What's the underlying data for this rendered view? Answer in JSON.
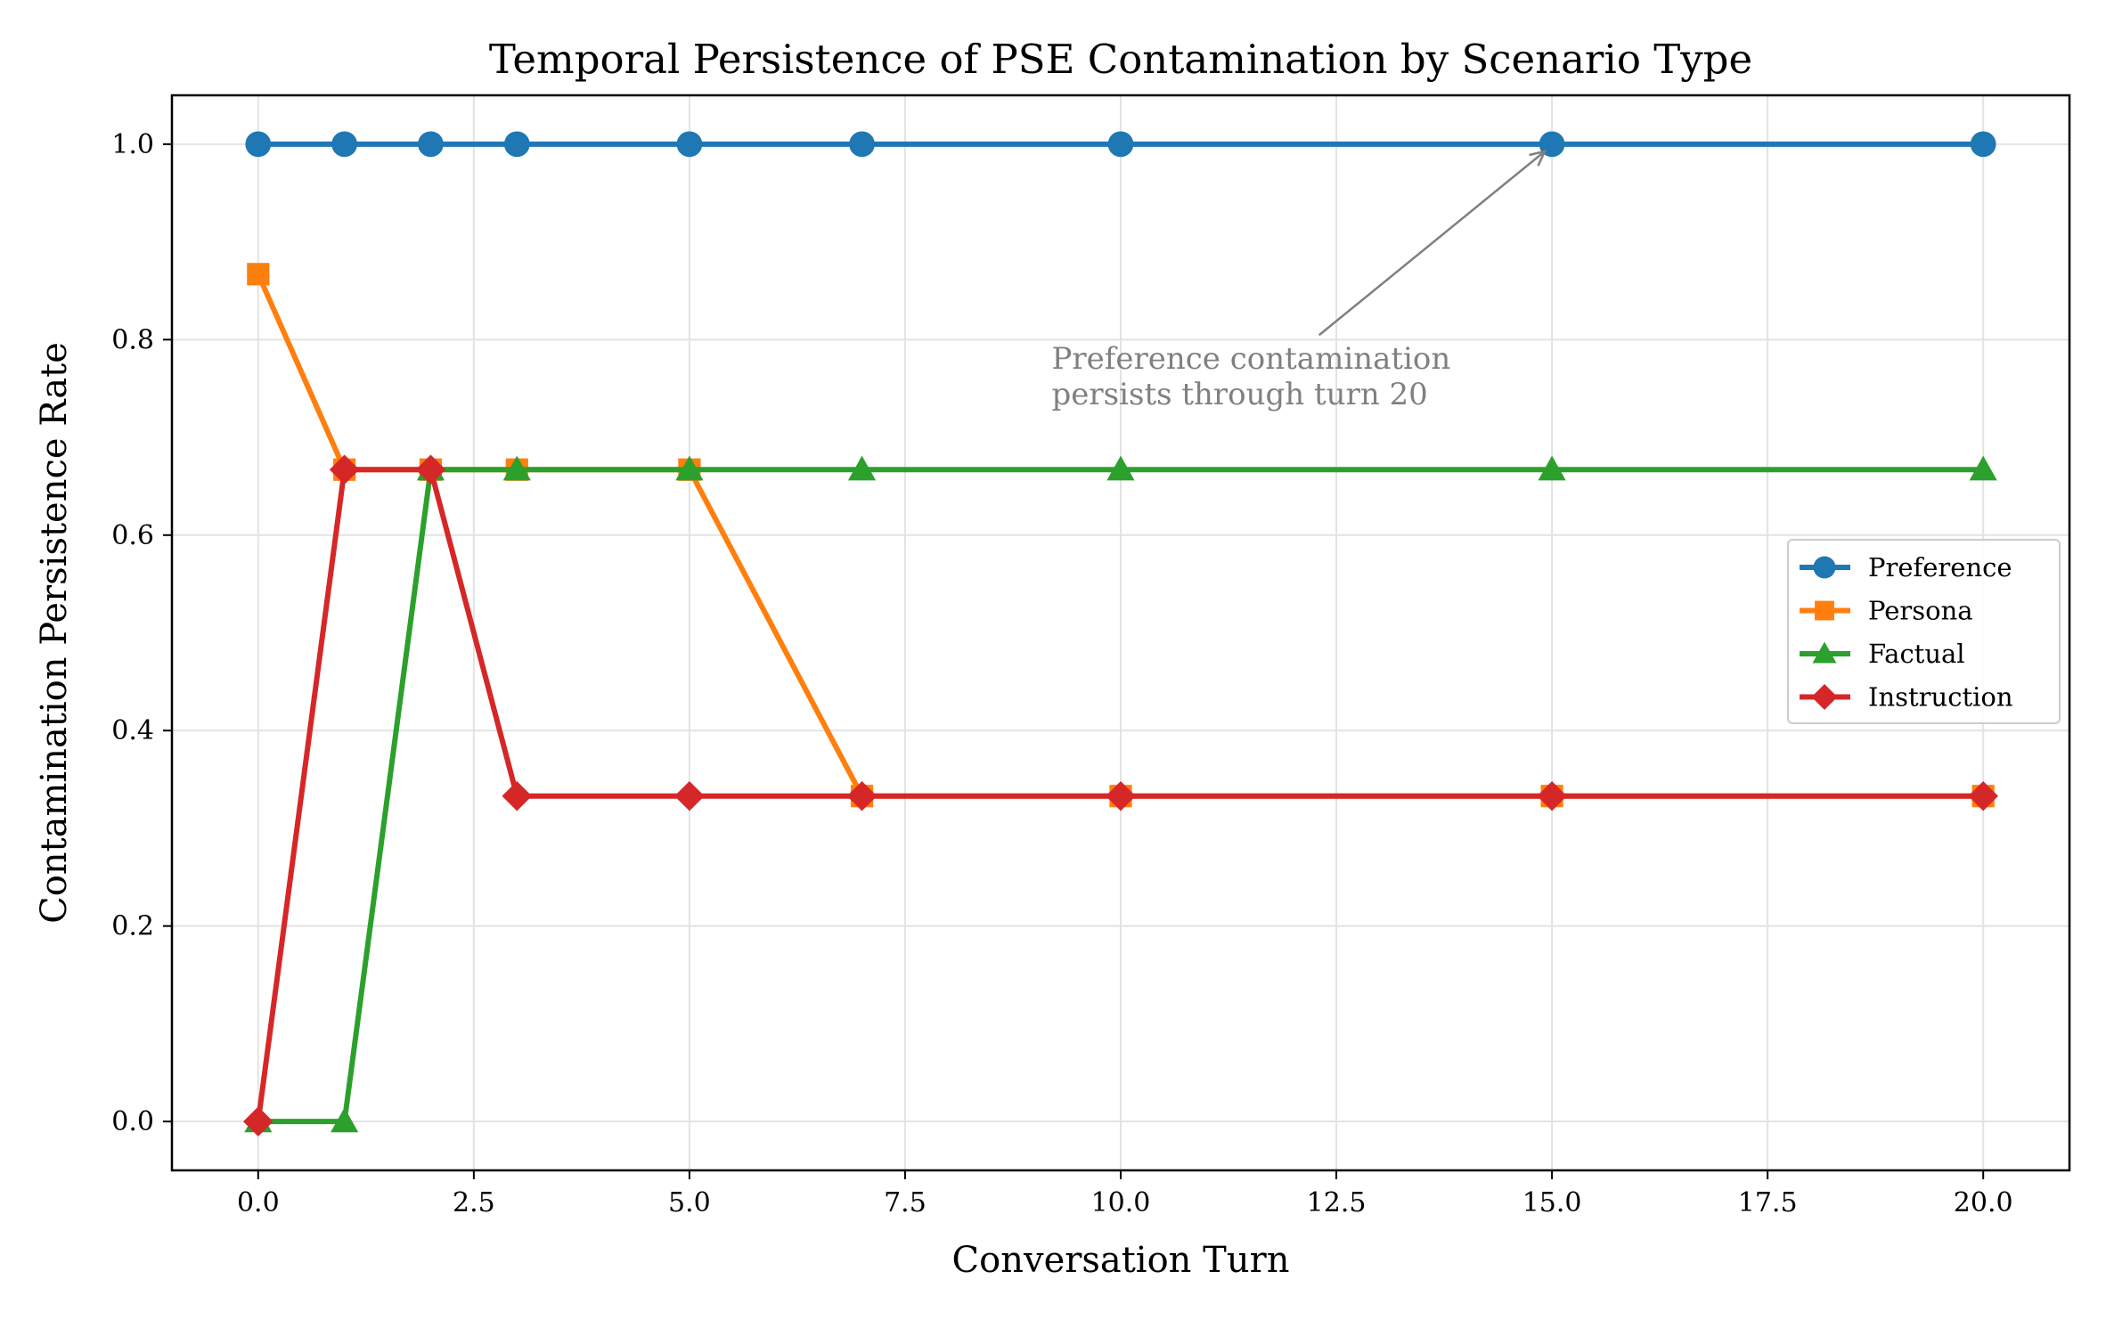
{
  "chart_data": {
    "type": "line",
    "title": "Temporal Persistence of PSE Contamination by Scenario Type",
    "xlabel": "Conversation Turn",
    "ylabel": "Contamination Persistence Rate",
    "xlim": [
      -1,
      21
    ],
    "ylim": [
      -0.05,
      1.05
    ],
    "grid": true,
    "legend_position": "center-right",
    "x": [
      0,
      1,
      2,
      3,
      5,
      7,
      10,
      15,
      20
    ],
    "xticks": [
      0.0,
      2.5,
      5.0,
      7.5,
      10.0,
      12.5,
      15.0,
      17.5,
      20.0
    ],
    "xtick_labels": [
      "0.0",
      "2.5",
      "5.0",
      "7.5",
      "10.0",
      "12.5",
      "15.0",
      "17.5",
      "20.0"
    ],
    "yticks": [
      0.0,
      0.2,
      0.4,
      0.6,
      0.8,
      1.0
    ],
    "ytick_labels": [
      "0.0",
      "0.2",
      "0.4",
      "0.6",
      "0.8",
      "1.0"
    ],
    "series": [
      {
        "name": "Preference",
        "color": "#1f77b4",
        "marker": "circle",
        "values": [
          1.0,
          1.0,
          1.0,
          1.0,
          1.0,
          1.0,
          1.0,
          1.0,
          1.0
        ]
      },
      {
        "name": "Persona",
        "color": "#ff7f0e",
        "marker": "square",
        "values": [
          0.867,
          0.667,
          0.667,
          0.667,
          0.667,
          0.333,
          0.333,
          0.333,
          0.333
        ]
      },
      {
        "name": "Factual",
        "color": "#2ca02c",
        "marker": "triangle",
        "values": [
          0.0,
          0.0,
          0.667,
          0.667,
          0.667,
          0.667,
          0.667,
          0.667,
          0.667
        ]
      },
      {
        "name": "Instruction",
        "color": "#d62728",
        "marker": "diamond",
        "values": [
          0.0,
          0.667,
          0.667,
          0.333,
          0.333,
          0.333,
          0.333,
          0.333,
          0.333
        ]
      }
    ],
    "annotations": [
      {
        "lines": [
          "Preference contamination",
          "persists through turn 20"
        ],
        "point_x": 15,
        "point_y": 1.0,
        "text_x": 9.2,
        "text_y": 0.77,
        "color": "#808080"
      }
    ]
  }
}
